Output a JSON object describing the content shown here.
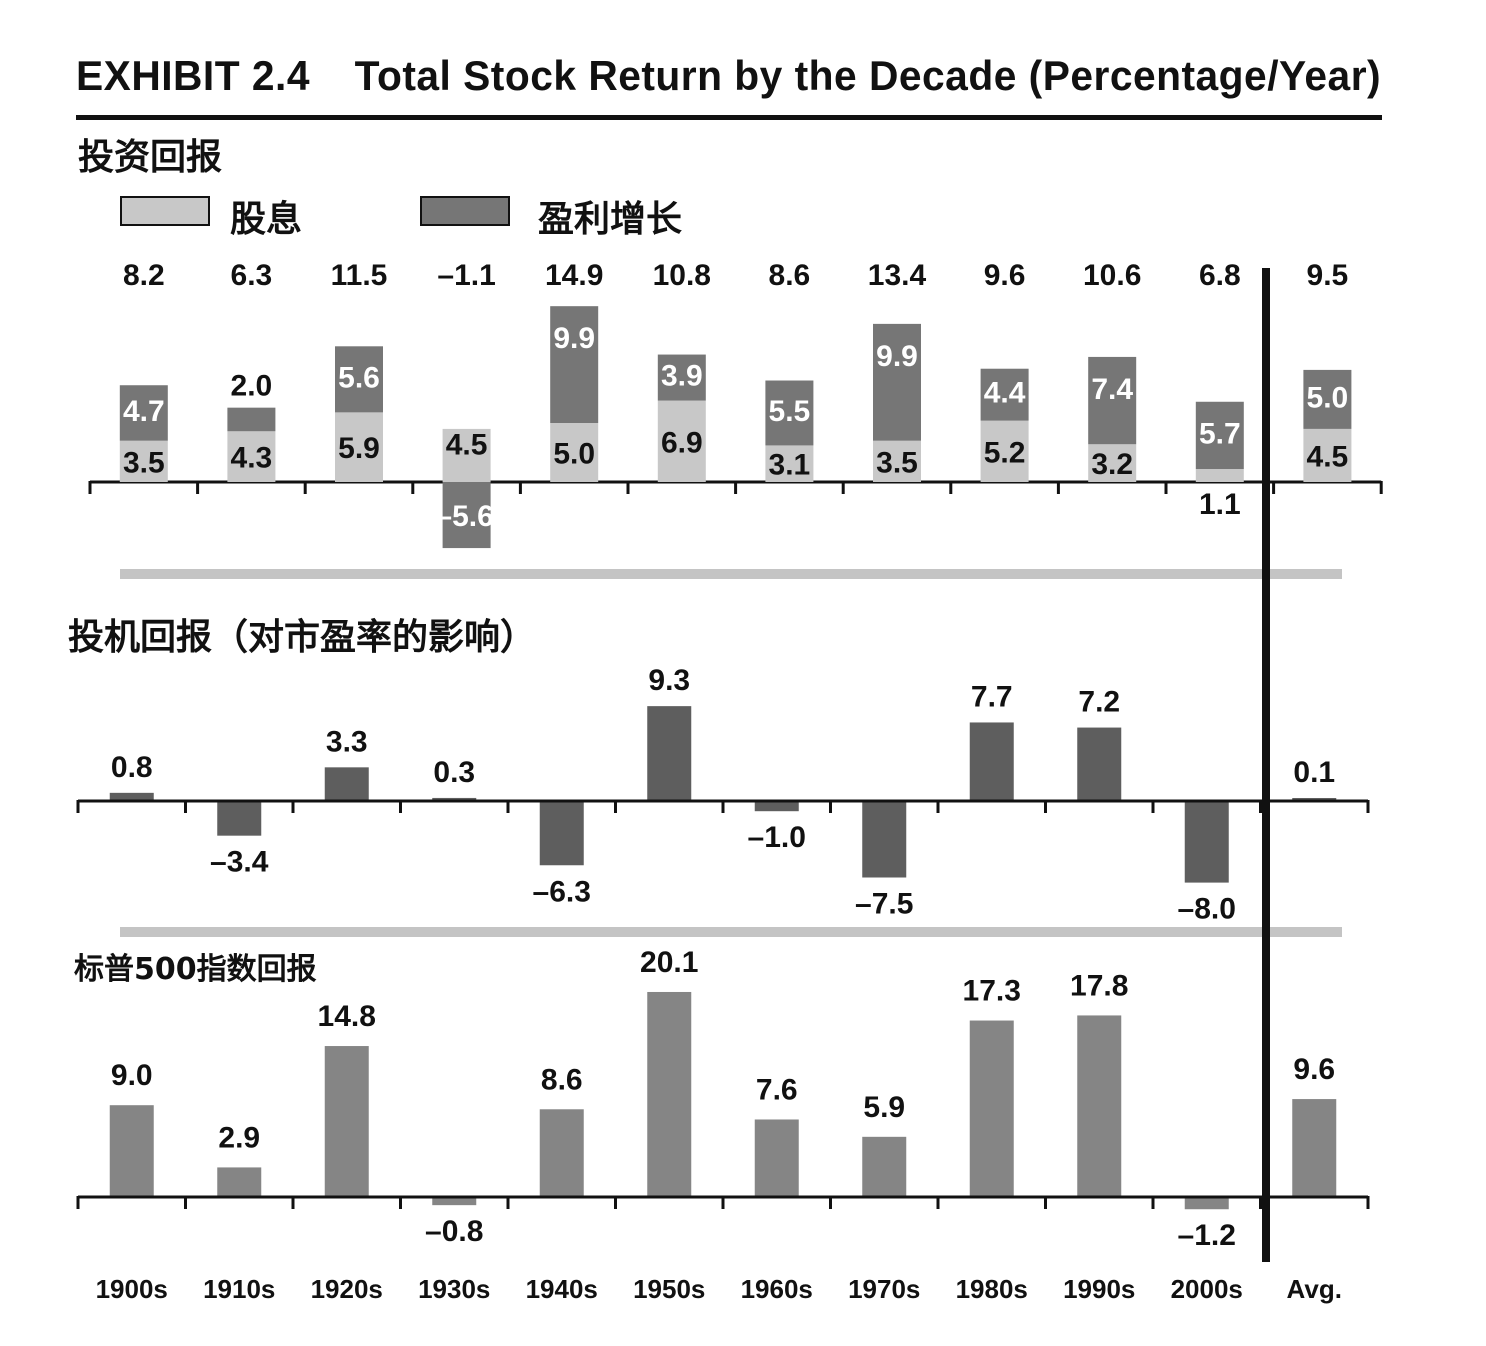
{
  "title": {
    "exhibit": "EXHIBIT 2.4",
    "text": "Total Stock Return by the Decade (Percentage/Year)"
  },
  "sections": {
    "investment": "投资回报",
    "speculative": "投机回报（对市盈率的影响）",
    "sp500": "标普500指数回报"
  },
  "legend": {
    "dividend": "股息",
    "growth": "盈利增长"
  },
  "colors": {
    "dividend": "#c8c8c8",
    "growth": "#767676",
    "speculative": "#5e5e5e",
    "sp500": "#858585",
    "axis": "#111111",
    "separator": "#c4c4c4"
  },
  "chart_data": [
    {
      "type": "bar",
      "stacked": true,
      "categories": [
        "1900s",
        "1910s",
        "1920s",
        "1930s",
        "1940s",
        "1950s",
        "1960s",
        "1970s",
        "1980s",
        "1990s",
        "2000s",
        "Avg."
      ],
      "series": [
        {
          "name": "股息",
          "values": [
            3.5,
            4.3,
            5.9,
            4.5,
            5.0,
            6.9,
            3.1,
            3.5,
            5.2,
            3.2,
            1.1,
            4.5
          ]
        },
        {
          "name": "盈利增长",
          "values": [
            4.7,
            2.0,
            5.6,
            -5.6,
            9.9,
            3.9,
            5.5,
            9.9,
            4.4,
            7.4,
            5.7,
            5.0
          ]
        }
      ],
      "totals": [
        8.2,
        6.3,
        11.5,
        -1.1,
        14.9,
        10.8,
        8.6,
        13.4,
        9.6,
        10.6,
        6.8,
        9.5
      ],
      "total_labels": [
        "8.2",
        "6.3",
        "11.5",
        "–1.1",
        "14.9",
        "10.8",
        "8.6",
        "13.4",
        "9.6",
        "10.6",
        "6.8",
        "9.5"
      ],
      "dividend_labels": [
        "3.5",
        "4.3",
        "5.9",
        "4.5",
        "5.0",
        "6.9",
        "3.1",
        "3.5",
        "5.2",
        "3.2",
        "1.1",
        "4.5"
      ],
      "growth_labels": [
        "4.7",
        "2.0",
        "5.6",
        "–5.6",
        "9.9",
        "3.9",
        "5.5",
        "9.9",
        "4.4",
        "7.4",
        "5.7",
        "5.0"
      ]
    },
    {
      "type": "bar",
      "categories": [
        "1900s",
        "1910s",
        "1920s",
        "1930s",
        "1940s",
        "1950s",
        "1960s",
        "1970s",
        "1980s",
        "1990s",
        "2000s",
        "Avg."
      ],
      "values": [
        0.8,
        -3.4,
        3.3,
        0.3,
        -6.3,
        9.3,
        -1.0,
        -7.5,
        7.7,
        7.2,
        -8.0,
        0.1
      ],
      "labels": [
        "0.8",
        "–3.4",
        "3.3",
        "0.3",
        "–6.3",
        "9.3",
        "–1.0",
        "–7.5",
        "7.7",
        "7.2",
        "–8.0",
        "0.1"
      ]
    },
    {
      "type": "bar",
      "categories": [
        "1900s",
        "1910s",
        "1920s",
        "1930s",
        "1940s",
        "1950s",
        "1960s",
        "1970s",
        "1980s",
        "1990s",
        "2000s",
        "Avg."
      ],
      "values": [
        9.0,
        2.9,
        14.8,
        -0.8,
        8.6,
        20.1,
        7.6,
        5.9,
        17.3,
        17.8,
        -1.2,
        9.6
      ],
      "labels": [
        "9.0",
        "2.9",
        "14.8",
        "–0.8",
        "8.6",
        "20.1",
        "7.6",
        "5.9",
        "17.3",
        "17.8",
        "–1.2",
        "9.6"
      ]
    }
  ]
}
